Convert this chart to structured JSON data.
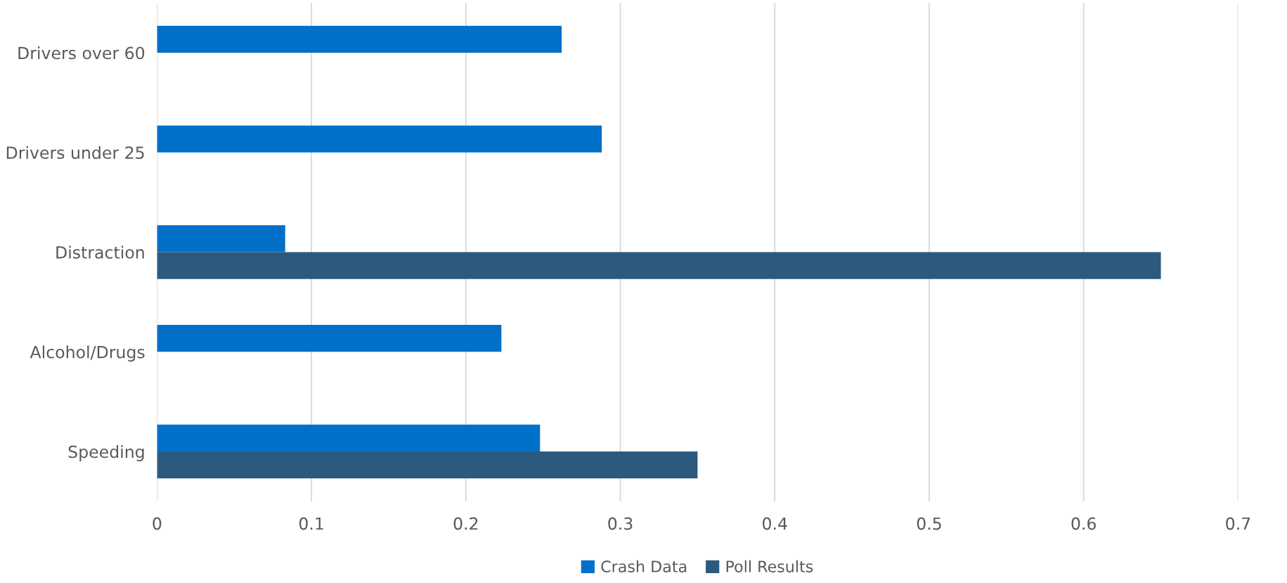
{
  "chart_data": {
    "type": "bar",
    "orientation": "horizontal",
    "categories": [
      "Drivers over 60",
      "Drivers under 25",
      "Distraction",
      "Alcohol/Drugs",
      "Speeding"
    ],
    "series": [
      {
        "name": "Crash Data",
        "color": "#0070c8",
        "values": [
          0.262,
          0.288,
          0.083,
          0.223,
          0.248
        ]
      },
      {
        "name": "Poll Results",
        "color": "#2c5a7e",
        "values": [
          null,
          null,
          0.65,
          null,
          0.35
        ]
      }
    ],
    "xlim": [
      0,
      0.7
    ],
    "xticks": [
      0,
      0.1,
      0.2,
      0.3,
      0.4,
      0.5,
      0.6,
      0.7
    ],
    "grid": "x",
    "legend": "bottom"
  }
}
